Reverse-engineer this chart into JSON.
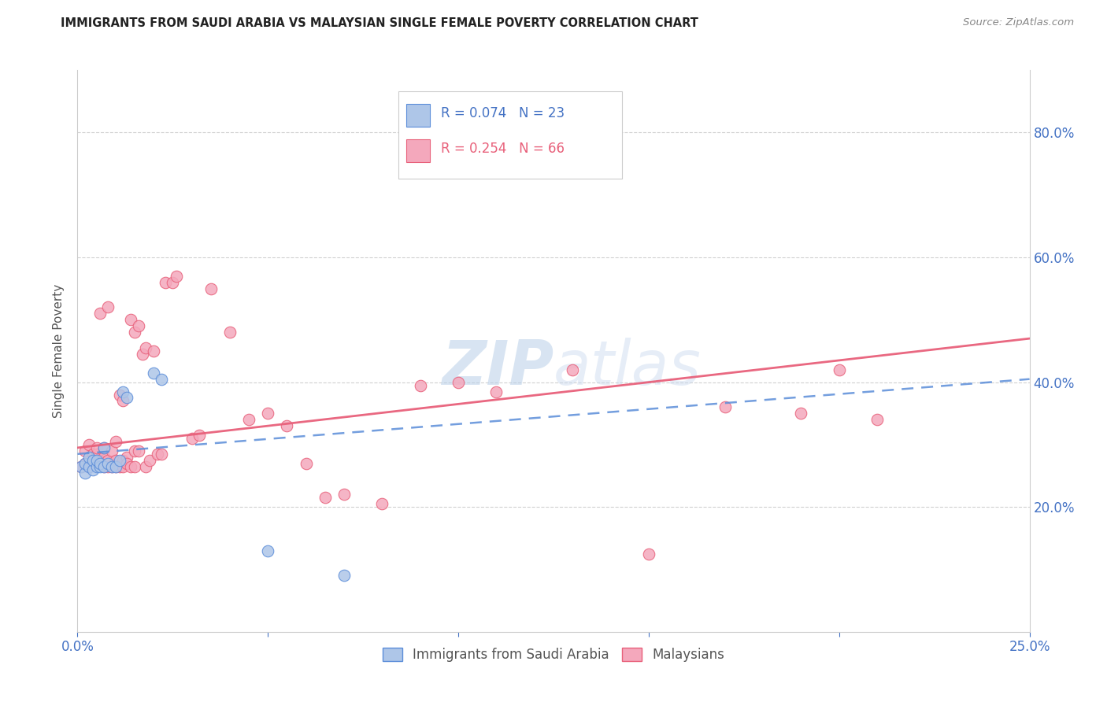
{
  "title": "IMMIGRANTS FROM SAUDI ARABIA VS MALAYSIAN SINGLE FEMALE POVERTY CORRELATION CHART",
  "source": "Source: ZipAtlas.com",
  "ylabel": "Single Female Poverty",
  "ylabel_right_ticks": [
    0.2,
    0.4,
    0.6,
    0.8
  ],
  "ylabel_right_labels": [
    "20.0%",
    "40.0%",
    "60.0%",
    "80.0%"
  ],
  "watermark": "ZIPatlas",
  "xlim": [
    0.0,
    0.25
  ],
  "ylim": [
    0.0,
    0.9
  ],
  "blue_color": "#aec6e8",
  "pink_color": "#f4a8bc",
  "blue_line_color": "#5b8dd9",
  "pink_line_color": "#e8607a",
  "saudi_x": [
    0.001,
    0.002,
    0.002,
    0.003,
    0.003,
    0.004,
    0.004,
    0.005,
    0.005,
    0.006,
    0.006,
    0.007,
    0.007,
    0.008,
    0.009,
    0.01,
    0.011,
    0.012,
    0.013,
    0.02,
    0.022,
    0.05,
    0.07
  ],
  "saudi_y": [
    0.265,
    0.255,
    0.27,
    0.265,
    0.28,
    0.26,
    0.275,
    0.265,
    0.275,
    0.265,
    0.27,
    0.265,
    0.295,
    0.27,
    0.265,
    0.265,
    0.275,
    0.385,
    0.375,
    0.415,
    0.405,
    0.13,
    0.09
  ],
  "malaysian_x": [
    0.001,
    0.002,
    0.002,
    0.003,
    0.003,
    0.004,
    0.004,
    0.005,
    0.005,
    0.006,
    0.006,
    0.007,
    0.007,
    0.007,
    0.008,
    0.008,
    0.008,
    0.009,
    0.009,
    0.01,
    0.01,
    0.01,
    0.011,
    0.011,
    0.012,
    0.012,
    0.012,
    0.013,
    0.013,
    0.014,
    0.014,
    0.015,
    0.015,
    0.015,
    0.016,
    0.016,
    0.017,
    0.018,
    0.018,
    0.019,
    0.02,
    0.021,
    0.022,
    0.023,
    0.025,
    0.026,
    0.03,
    0.032,
    0.035,
    0.04,
    0.045,
    0.05,
    0.055,
    0.06,
    0.065,
    0.07,
    0.08,
    0.09,
    0.1,
    0.11,
    0.13,
    0.15,
    0.17,
    0.19,
    0.2,
    0.21
  ],
  "malaysian_y": [
    0.265,
    0.27,
    0.29,
    0.265,
    0.3,
    0.27,
    0.285,
    0.285,
    0.295,
    0.275,
    0.51,
    0.265,
    0.28,
    0.295,
    0.265,
    0.275,
    0.52,
    0.265,
    0.29,
    0.265,
    0.275,
    0.305,
    0.265,
    0.38,
    0.265,
    0.275,
    0.37,
    0.28,
    0.27,
    0.5,
    0.265,
    0.29,
    0.265,
    0.48,
    0.49,
    0.29,
    0.445,
    0.265,
    0.455,
    0.275,
    0.45,
    0.285,
    0.285,
    0.56,
    0.56,
    0.57,
    0.31,
    0.315,
    0.55,
    0.48,
    0.34,
    0.35,
    0.33,
    0.27,
    0.215,
    0.22,
    0.205,
    0.395,
    0.4,
    0.385,
    0.42,
    0.125,
    0.36,
    0.35,
    0.42,
    0.34
  ],
  "blue_trend_x0": 0.0,
  "blue_trend_y0": 0.285,
  "blue_trend_x1": 0.25,
  "blue_trend_y1": 0.405,
  "pink_trend_x0": 0.0,
  "pink_trend_y0": 0.295,
  "pink_trend_x1": 0.25,
  "pink_trend_y1": 0.47
}
